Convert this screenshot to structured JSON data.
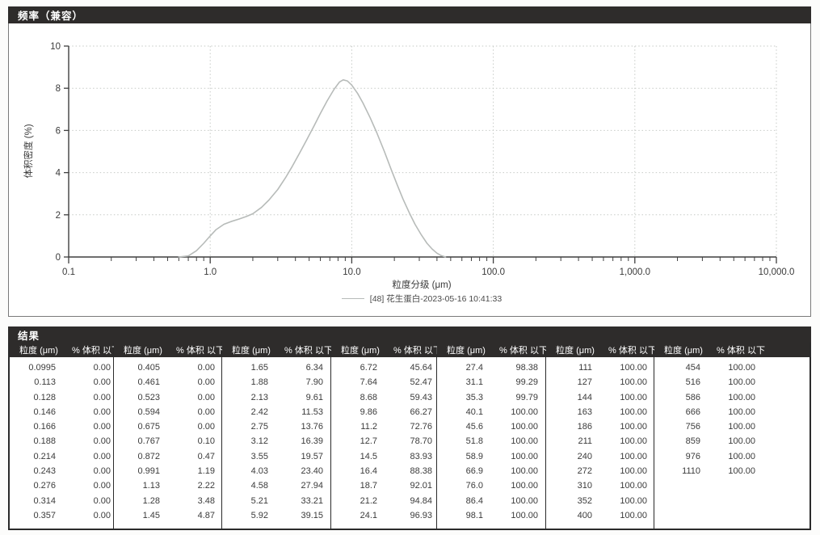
{
  "chart_panel": {
    "title": "频率（兼容）"
  },
  "chart_data": {
    "type": "line",
    "title": "频率（兼容）",
    "xlabel": "粒度分级 (μm)",
    "ylabel": "体积密度 (%)",
    "xscale": "log",
    "xlim": [
      0.1,
      10000
    ],
    "ylim": [
      0,
      10
    ],
    "x_tick_labels": [
      "0.1",
      "1.0",
      "10.0",
      "100.0",
      "1,000.0",
      "10,000.0"
    ],
    "y_ticks": [
      0,
      2,
      4,
      6,
      8,
      10
    ],
    "grid": true,
    "legend_position": "bottom-center",
    "series": [
      {
        "name": "[48] 花生蛋白-2023-05-16 10:41:33",
        "color": "#b7bbb9",
        "x": [
          0.6,
          0.7,
          0.8,
          0.9,
          1.0,
          1.1,
          1.25,
          1.4,
          1.6,
          1.8,
          2.0,
          2.3,
          2.6,
          3.0,
          3.4,
          3.8,
          4.3,
          4.8,
          5.4,
          6.0,
          6.7,
          7.5,
          8.2,
          8.7,
          9.3,
          10.0,
          11.0,
          12.0,
          13.5,
          15.0,
          17.0,
          19.0,
          21.0,
          23.0,
          25.5,
          28.0,
          31.0,
          34.0,
          37.0,
          40.0,
          43.0,
          46.0
        ],
        "y": [
          0.0,
          0.05,
          0.3,
          0.65,
          1.0,
          1.3,
          1.55,
          1.68,
          1.8,
          1.92,
          2.05,
          2.35,
          2.7,
          3.2,
          3.75,
          4.3,
          4.95,
          5.55,
          6.2,
          6.8,
          7.4,
          7.95,
          8.3,
          8.4,
          8.35,
          8.15,
          7.75,
          7.3,
          6.6,
          5.9,
          5.0,
          4.15,
          3.4,
          2.75,
          2.1,
          1.55,
          1.05,
          0.65,
          0.38,
          0.18,
          0.06,
          0.0
        ]
      }
    ]
  },
  "results_panel": {
    "title": "结果",
    "col_headers": {
      "size": "粒度 (μm)",
      "pct": "% 体积 以下"
    },
    "groups": [
      {
        "rows": [
          [
            "0.0995",
            "0.00"
          ],
          [
            "0.113",
            "0.00"
          ],
          [
            "0.128",
            "0.00"
          ],
          [
            "0.146",
            "0.00"
          ],
          [
            "0.166",
            "0.00"
          ],
          [
            "0.188",
            "0.00"
          ],
          [
            "0.214",
            "0.00"
          ],
          [
            "0.243",
            "0.00"
          ],
          [
            "0.276",
            "0.00"
          ],
          [
            "0.314",
            "0.00"
          ],
          [
            "0.357",
            "0.00"
          ]
        ]
      },
      {
        "rows": [
          [
            "0.405",
            "0.00"
          ],
          [
            "0.461",
            "0.00"
          ],
          [
            "0.523",
            "0.00"
          ],
          [
            "0.594",
            "0.00"
          ],
          [
            "0.675",
            "0.00"
          ],
          [
            "0.767",
            "0.10"
          ],
          [
            "0.872",
            "0.47"
          ],
          [
            "0.991",
            "1.19"
          ],
          [
            "1.13",
            "2.22"
          ],
          [
            "1.28",
            "3.48"
          ],
          [
            "1.45",
            "4.87"
          ]
        ]
      },
      {
        "rows": [
          [
            "1.65",
            "6.34"
          ],
          [
            "1.88",
            "7.90"
          ],
          [
            "2.13",
            "9.61"
          ],
          [
            "2.42",
            "11.53"
          ],
          [
            "2.75",
            "13.76"
          ],
          [
            "3.12",
            "16.39"
          ],
          [
            "3.55",
            "19.57"
          ],
          [
            "4.03",
            "23.40"
          ],
          [
            "4.58",
            "27.94"
          ],
          [
            "5.21",
            "33.21"
          ],
          [
            "5.92",
            "39.15"
          ]
        ]
      },
      {
        "rows": [
          [
            "6.72",
            "45.64"
          ],
          [
            "7.64",
            "52.47"
          ],
          [
            "8.68",
            "59.43"
          ],
          [
            "9.86",
            "66.27"
          ],
          [
            "11.2",
            "72.76"
          ],
          [
            "12.7",
            "78.70"
          ],
          [
            "14.5",
            "83.93"
          ],
          [
            "16.4",
            "88.38"
          ],
          [
            "18.7",
            "92.01"
          ],
          [
            "21.2",
            "94.84"
          ],
          [
            "24.1",
            "96.93"
          ]
        ]
      },
      {
        "rows": [
          [
            "27.4",
            "98.38"
          ],
          [
            "31.1",
            "99.29"
          ],
          [
            "35.3",
            "99.79"
          ],
          [
            "40.1",
            "100.00"
          ],
          [
            "45.6",
            "100.00"
          ],
          [
            "51.8",
            "100.00"
          ],
          [
            "58.9",
            "100.00"
          ],
          [
            "66.9",
            "100.00"
          ],
          [
            "76.0",
            "100.00"
          ],
          [
            "86.4",
            "100.00"
          ],
          [
            "98.1",
            "100.00"
          ]
        ]
      },
      {
        "rows": [
          [
            "111",
            "100.00"
          ],
          [
            "127",
            "100.00"
          ],
          [
            "144",
            "100.00"
          ],
          [
            "163",
            "100.00"
          ],
          [
            "186",
            "100.00"
          ],
          [
            "211",
            "100.00"
          ],
          [
            "240",
            "100.00"
          ],
          [
            "272",
            "100.00"
          ],
          [
            "310",
            "100.00"
          ],
          [
            "352",
            "100.00"
          ],
          [
            "400",
            "100.00"
          ]
        ]
      },
      {
        "rows": [
          [
            "454",
            "100.00"
          ],
          [
            "516",
            "100.00"
          ],
          [
            "586",
            "100.00"
          ],
          [
            "666",
            "100.00"
          ],
          [
            "756",
            "100.00"
          ],
          [
            "859",
            "100.00"
          ],
          [
            "976",
            "100.00"
          ],
          [
            "1110",
            "100.00"
          ]
        ]
      }
    ]
  },
  "colors": {
    "header_bar": "#2e2c2b",
    "curve": "#b7bbb9",
    "grid": "#c6cac6",
    "axis": "#3f3f3f",
    "text": "#3a3a3a"
  }
}
